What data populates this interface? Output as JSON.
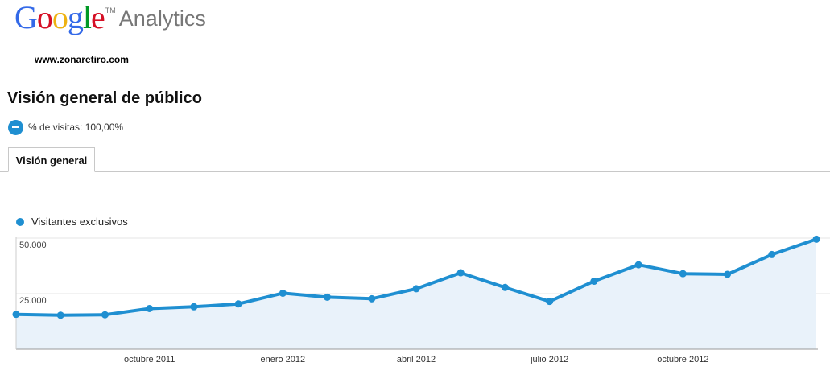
{
  "logo": {
    "letters": [
      {
        "ch": "G",
        "color": "#3369e8"
      },
      {
        "ch": "o",
        "color": "#d50f25"
      },
      {
        "ch": "o",
        "color": "#eeb211"
      },
      {
        "ch": "g",
        "color": "#3369e8"
      },
      {
        "ch": "l",
        "color": "#009925"
      },
      {
        "ch": "e",
        "color": "#d50f25"
      }
    ],
    "tm": "TM",
    "product": "Analytics"
  },
  "site": "www.zonaretiro.com",
  "page_title": "Visión general de público",
  "segment": {
    "label": "% de visitas: 100,00%"
  },
  "tabs": [
    {
      "label": "Visión general",
      "active": true
    }
  ],
  "colors": {
    "accent": "#1f8fd1",
    "area_fill": "#e9f2fa"
  },
  "chart_data": {
    "type": "area",
    "legend": [
      "Visitantes exclusivos"
    ],
    "series": [
      {
        "name": "Visitantes exclusivos",
        "values": [
          15700,
          15300,
          15500,
          18300,
          19100,
          20400,
          25200,
          23400,
          22700,
          27200,
          34400,
          27800,
          21500,
          30600,
          38000,
          34000,
          33700,
          42600,
          49500
        ]
      }
    ],
    "y_ticks": [
      {
        "value": 50000,
        "label": "50.000"
      },
      {
        "value": 25000,
        "label": "25.000"
      }
    ],
    "ylim": [
      0,
      50000
    ],
    "x_labels": [
      {
        "index": 3,
        "label": "octubre 2011"
      },
      {
        "index": 6,
        "label": "enero 2012"
      },
      {
        "index": 9,
        "label": "abril 2012"
      },
      {
        "index": 12,
        "label": "julio 2012"
      },
      {
        "index": 15,
        "label": "octubre 2012"
      }
    ],
    "grid": true
  }
}
